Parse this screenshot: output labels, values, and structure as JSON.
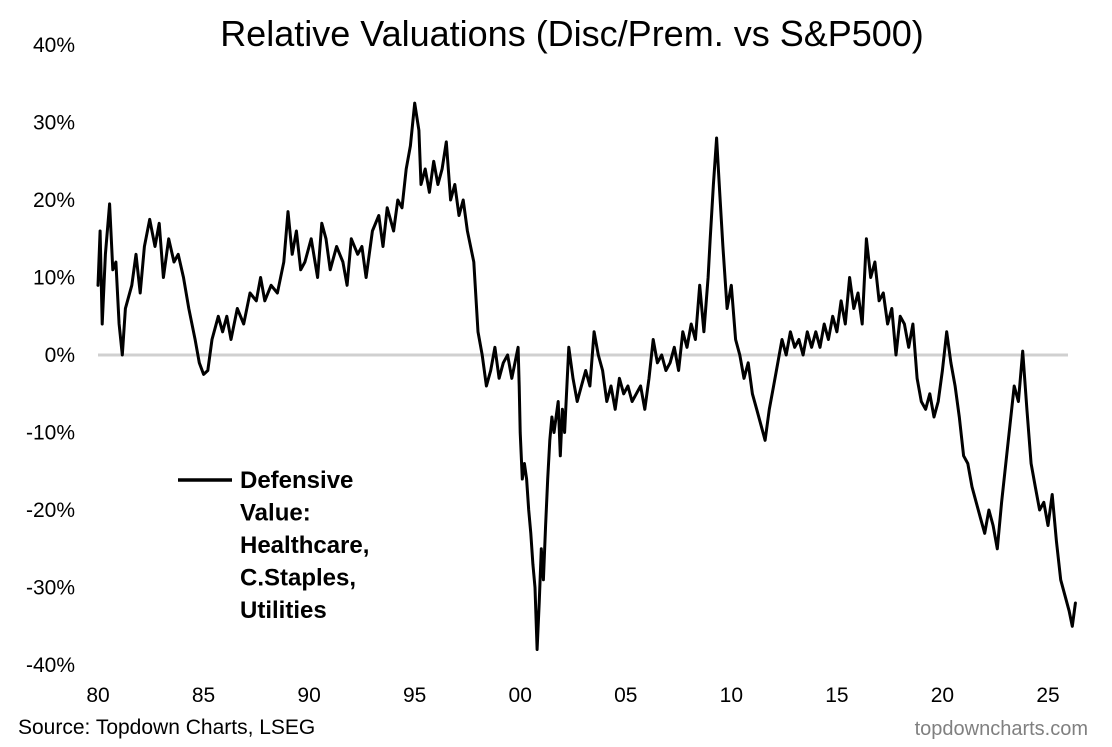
{
  "chart_data": {
    "type": "line",
    "title": "Relative Valuations (Disc/Prem. vs S&P500)",
    "xlabel": "",
    "ylabel": "",
    "x_ticks": [
      {
        "value": 1980,
        "label": "80"
      },
      {
        "value": 1985,
        "label": "85"
      },
      {
        "value": 1990,
        "label": "90"
      },
      {
        "value": 1995,
        "label": "95"
      },
      {
        "value": 2000,
        "label": "00"
      },
      {
        "value": 2005,
        "label": "05"
      },
      {
        "value": 2010,
        "label": "10"
      },
      {
        "value": 2015,
        "label": "15"
      },
      {
        "value": 2020,
        "label": "20"
      },
      {
        "value": 2025,
        "label": "25"
      }
    ],
    "y_ticks": [
      {
        "value": 40,
        "label": "40%"
      },
      {
        "value": 30,
        "label": "30%"
      },
      {
        "value": 20,
        "label": "20%"
      },
      {
        "value": 10,
        "label": "10%"
      },
      {
        "value": 0,
        "label": "0%"
      },
      {
        "value": -10,
        "label": "-10%"
      },
      {
        "value": -20,
        "label": "-20%"
      },
      {
        "value": -30,
        "label": "-30%"
      },
      {
        "value": -40,
        "label": "-40%"
      }
    ],
    "xlim": [
      1980,
      2026.5
    ],
    "ylim": [
      -40,
      40
    ],
    "zero_line": true,
    "legend_position": "left-center",
    "series": [
      {
        "name": "Defensive Value: Healthcare, C.Staples, Utilities",
        "legend_lines": [
          "Defensive",
          "Value:",
          "Healthcare,",
          "C.Staples,",
          "Utilities"
        ],
        "color": "#000000",
        "points": [
          [
            1980.0,
            9
          ],
          [
            1980.1,
            16
          ],
          [
            1980.2,
            4
          ],
          [
            1980.35,
            13
          ],
          [
            1980.55,
            19.5
          ],
          [
            1980.7,
            11
          ],
          [
            1980.85,
            12
          ],
          [
            1981.0,
            4
          ],
          [
            1981.15,
            0
          ],
          [
            1981.3,
            6
          ],
          [
            1981.6,
            9
          ],
          [
            1981.8,
            13
          ],
          [
            1982.0,
            8
          ],
          [
            1982.2,
            14
          ],
          [
            1982.45,
            17.5
          ],
          [
            1982.7,
            14
          ],
          [
            1982.9,
            17
          ],
          [
            1983.1,
            10
          ],
          [
            1983.35,
            15
          ],
          [
            1983.6,
            12
          ],
          [
            1983.8,
            13
          ],
          [
            1984.05,
            10
          ],
          [
            1984.3,
            6
          ],
          [
            1984.6,
            2
          ],
          [
            1984.8,
            -1
          ],
          [
            1985.0,
            -2.5
          ],
          [
            1985.2,
            -2
          ],
          [
            1985.4,
            2
          ],
          [
            1985.7,
            5
          ],
          [
            1985.9,
            3
          ],
          [
            1986.1,
            5
          ],
          [
            1986.3,
            2
          ],
          [
            1986.6,
            6
          ],
          [
            1986.9,
            4
          ],
          [
            1987.2,
            8
          ],
          [
            1987.5,
            7
          ],
          [
            1987.7,
            10
          ],
          [
            1987.9,
            7
          ],
          [
            1988.2,
            9
          ],
          [
            1988.5,
            8
          ],
          [
            1988.8,
            12
          ],
          [
            1989.0,
            18.5
          ],
          [
            1989.2,
            13
          ],
          [
            1989.4,
            16
          ],
          [
            1989.6,
            11
          ],
          [
            1989.8,
            12
          ],
          [
            1990.1,
            15
          ],
          [
            1990.4,
            10
          ],
          [
            1990.6,
            17
          ],
          [
            1990.8,
            15
          ],
          [
            1991.0,
            11
          ],
          [
            1991.3,
            14
          ],
          [
            1991.6,
            12
          ],
          [
            1991.8,
            9
          ],
          [
            1992.0,
            15
          ],
          [
            1992.3,
            13
          ],
          [
            1992.5,
            14
          ],
          [
            1992.7,
            10
          ],
          [
            1993.0,
            16
          ],
          [
            1993.3,
            18
          ],
          [
            1993.5,
            14
          ],
          [
            1993.7,
            19
          ],
          [
            1994.0,
            16
          ],
          [
            1994.2,
            20
          ],
          [
            1994.4,
            19
          ],
          [
            1994.6,
            24
          ],
          [
            1994.8,
            27
          ],
          [
            1995.0,
            32.5
          ],
          [
            1995.2,
            29
          ],
          [
            1995.3,
            22
          ],
          [
            1995.5,
            24
          ],
          [
            1995.7,
            21
          ],
          [
            1995.9,
            25
          ],
          [
            1996.1,
            22
          ],
          [
            1996.3,
            24
          ],
          [
            1996.5,
            27.5
          ],
          [
            1996.7,
            20
          ],
          [
            1996.9,
            22
          ],
          [
            1997.1,
            18
          ],
          [
            1997.3,
            20
          ],
          [
            1997.5,
            16
          ],
          [
            1997.8,
            12
          ],
          [
            1998.0,
            3
          ],
          [
            1998.2,
            0
          ],
          [
            1998.4,
            -4
          ],
          [
            1998.6,
            -2
          ],
          [
            1998.8,
            1
          ],
          [
            1999.0,
            -3
          ],
          [
            1999.2,
            -1
          ],
          [
            1999.4,
            0
          ],
          [
            1999.6,
            -3
          ],
          [
            1999.9,
            1
          ],
          [
            1999.95,
            -4
          ],
          [
            2000.0,
            -10
          ],
          [
            2000.1,
            -16
          ],
          [
            2000.2,
            -14
          ],
          [
            2000.3,
            -16
          ],
          [
            2000.4,
            -20
          ],
          [
            2000.5,
            -23
          ],
          [
            2000.6,
            -27
          ],
          [
            2000.7,
            -30
          ],
          [
            2000.8,
            -38
          ],
          [
            2000.9,
            -32
          ],
          [
            2001.0,
            -25
          ],
          [
            2001.1,
            -29
          ],
          [
            2001.2,
            -22
          ],
          [
            2001.3,
            -16
          ],
          [
            2001.4,
            -11
          ],
          [
            2001.5,
            -8
          ],
          [
            2001.6,
            -10
          ],
          [
            2001.8,
            -6
          ],
          [
            2001.9,
            -13
          ],
          [
            2002.0,
            -7
          ],
          [
            2002.1,
            -10
          ],
          [
            2002.3,
            1
          ],
          [
            2002.5,
            -3
          ],
          [
            2002.7,
            -6
          ],
          [
            2002.9,
            -4
          ],
          [
            2003.1,
            -2
          ],
          [
            2003.3,
            -4
          ],
          [
            2003.5,
            3
          ],
          [
            2003.7,
            0
          ],
          [
            2003.9,
            -2
          ],
          [
            2004.1,
            -6
          ],
          [
            2004.3,
            -4
          ],
          [
            2004.5,
            -7
          ],
          [
            2004.7,
            -3
          ],
          [
            2004.9,
            -5
          ],
          [
            2005.1,
            -4
          ],
          [
            2005.3,
            -6
          ],
          [
            2005.5,
            -5
          ],
          [
            2005.7,
            -4
          ],
          [
            2005.9,
            -7
          ],
          [
            2006.1,
            -3
          ],
          [
            2006.3,
            2
          ],
          [
            2006.5,
            -1
          ],
          [
            2006.7,
            0
          ],
          [
            2006.9,
            -2
          ],
          [
            2007.1,
            -1
          ],
          [
            2007.3,
            1
          ],
          [
            2007.5,
            -2
          ],
          [
            2007.7,
            3
          ],
          [
            2007.9,
            1
          ],
          [
            2008.1,
            4
          ],
          [
            2008.3,
            2
          ],
          [
            2008.5,
            9
          ],
          [
            2008.7,
            3
          ],
          [
            2008.9,
            10
          ],
          [
            2009.0,
            15
          ],
          [
            2009.15,
            22
          ],
          [
            2009.3,
            28
          ],
          [
            2009.45,
            21
          ],
          [
            2009.6,
            14
          ],
          [
            2009.8,
            6
          ],
          [
            2010.0,
            9
          ],
          [
            2010.2,
            2
          ],
          [
            2010.4,
            0
          ],
          [
            2010.6,
            -3
          ],
          [
            2010.8,
            -1
          ],
          [
            2011.0,
            -5
          ],
          [
            2011.2,
            -7
          ],
          [
            2011.4,
            -9
          ],
          [
            2011.6,
            -11
          ],
          [
            2011.8,
            -7
          ],
          [
            2012.0,
            -4
          ],
          [
            2012.2,
            -1
          ],
          [
            2012.4,
            2
          ],
          [
            2012.6,
            0
          ],
          [
            2012.8,
            3
          ],
          [
            2013.0,
            1
          ],
          [
            2013.2,
            2
          ],
          [
            2013.4,
            0
          ],
          [
            2013.6,
            3
          ],
          [
            2013.8,
            1
          ],
          [
            2014.0,
            3
          ],
          [
            2014.2,
            1
          ],
          [
            2014.4,
            4
          ],
          [
            2014.6,
            2
          ],
          [
            2014.8,
            5
          ],
          [
            2015.0,
            3
          ],
          [
            2015.2,
            7
          ],
          [
            2015.4,
            4
          ],
          [
            2015.6,
            10
          ],
          [
            2015.8,
            6
          ],
          [
            2016.0,
            8
          ],
          [
            2016.2,
            4
          ],
          [
            2016.4,
            15
          ],
          [
            2016.6,
            10
          ],
          [
            2016.8,
            12
          ],
          [
            2017.0,
            7
          ],
          [
            2017.2,
            8
          ],
          [
            2017.4,
            4
          ],
          [
            2017.6,
            6
          ],
          [
            2017.8,
            0
          ],
          [
            2018.0,
            5
          ],
          [
            2018.2,
            4
          ],
          [
            2018.4,
            1
          ],
          [
            2018.6,
            4
          ],
          [
            2018.8,
            -3
          ],
          [
            2019.0,
            -6
          ],
          [
            2019.2,
            -7
          ],
          [
            2019.4,
            -5
          ],
          [
            2019.6,
            -8
          ],
          [
            2019.8,
            -6
          ],
          [
            2020.0,
            -2
          ],
          [
            2020.2,
            3
          ],
          [
            2020.4,
            -1
          ],
          [
            2020.6,
            -4
          ],
          [
            2020.8,
            -8
          ],
          [
            2021.0,
            -13
          ],
          [
            2021.2,
            -14
          ],
          [
            2021.4,
            -17
          ],
          [
            2021.6,
            -19
          ],
          [
            2021.8,
            -21
          ],
          [
            2022.0,
            -23
          ],
          [
            2022.2,
            -20
          ],
          [
            2022.4,
            -22
          ],
          [
            2022.6,
            -25
          ],
          [
            2022.8,
            -19
          ],
          [
            2023.0,
            -14
          ],
          [
            2023.2,
            -9
          ],
          [
            2023.4,
            -4
          ],
          [
            2023.6,
            -6
          ],
          [
            2023.8,
            0.5
          ],
          [
            2024.0,
            -7
          ],
          [
            2024.2,
            -14
          ],
          [
            2024.4,
            -17
          ],
          [
            2024.6,
            -20
          ],
          [
            2024.8,
            -19
          ],
          [
            2025.0,
            -22
          ],
          [
            2025.2,
            -18
          ],
          [
            2025.4,
            -24
          ],
          [
            2025.6,
            -29
          ],
          [
            2025.8,
            -31
          ],
          [
            2026.0,
            -33
          ],
          [
            2026.15,
            -35
          ],
          [
            2026.3,
            -32
          ]
        ]
      }
    ]
  },
  "footer": {
    "source": "Source: Topdown Charts, LSEG",
    "brand": "topdowncharts.com"
  }
}
